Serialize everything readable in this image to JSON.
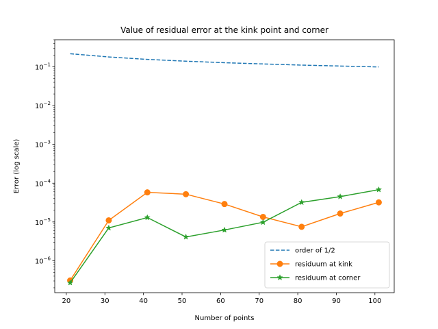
{
  "chart_data": {
    "type": "line",
    "title": "Value of residual error at the kink point and corner",
    "xlabel": "Number of points",
    "ylabel": "Error (log scale)",
    "xlim": [
      17,
      105
    ],
    "ylim": [
      1.5e-07,
      0.5
    ],
    "yscale": "log",
    "x": [
      21,
      31,
      41,
      51,
      61,
      71,
      81,
      91,
      101
    ],
    "xticks": [
      20,
      30,
      40,
      50,
      60,
      70,
      80,
      90,
      100
    ],
    "yticks": [
      {
        "value": 1e-06,
        "base": "10",
        "exp": "−6"
      },
      {
        "value": 1e-05,
        "base": "10",
        "exp": "−5"
      },
      {
        "value": 0.0001,
        "base": "10",
        "exp": "−4"
      },
      {
        "value": 0.001,
        "base": "10",
        "exp": "−3"
      },
      {
        "value": 0.01,
        "base": "10",
        "exp": "−2"
      },
      {
        "value": 0.1,
        "base": "10",
        "exp": "−1"
      }
    ],
    "series": [
      {
        "name": "order of 1/2",
        "style": "dashed",
        "marker": "none",
        "color": "#1f77b4",
        "values": [
          0.218,
          0.18,
          0.156,
          0.14,
          0.128,
          0.119,
          0.111,
          0.105,
          0.0995
        ]
      },
      {
        "name": "residuum at kink",
        "style": "solid",
        "marker": "circle",
        "color": "#ff7f0e",
        "values": [
          3.1e-07,
          1.1e-05,
          5.8e-05,
          5.2e-05,
          2.9e-05,
          1.35e-05,
          7.5e-06,
          1.65e-05,
          3.2e-05
        ]
      },
      {
        "name": "residuum at corner",
        "style": "solid",
        "marker": "star",
        "color": "#2ca02c",
        "values": [
          2.7e-07,
          7e-06,
          1.3e-05,
          4.1e-06,
          6.2e-06,
          9.8e-06,
          3.2e-05,
          4.5e-05,
          6.8e-05
        ]
      }
    ],
    "legend": "lower-right",
    "grid": false
  }
}
